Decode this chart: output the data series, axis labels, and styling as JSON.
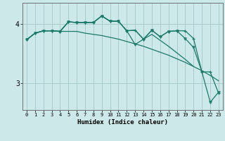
{
  "title": "",
  "xlabel": "Humidex (Indice chaleur)",
  "background_color": "#cce8e8",
  "grid_color": "#aacccc",
  "line_color": "#1a7a6a",
  "ylim": [
    2.55,
    4.35
  ],
  "xlim": [
    -0.5,
    23.5
  ],
  "yticks": [
    3,
    4
  ],
  "line1_x": [
    0,
    1,
    2,
    3,
    4,
    5,
    6,
    7,
    8,
    9,
    10,
    11,
    12,
    13,
    14,
    15,
    16,
    17,
    18,
    19,
    20,
    21,
    22,
    23
  ],
  "line1_y": [
    3.73,
    3.84,
    3.88,
    3.88,
    3.87,
    4.03,
    4.02,
    4.02,
    4.02,
    4.13,
    4.04,
    4.04,
    3.88,
    3.89,
    3.74,
    3.89,
    3.78,
    3.87,
    3.88,
    3.88,
    3.75,
    3.19,
    3.19,
    2.83
  ],
  "line2_x": [
    0,
    1,
    2,
    3,
    4,
    5,
    6,
    7,
    8,
    9,
    10,
    11,
    12,
    13,
    14,
    15,
    16,
    17,
    18,
    19,
    20,
    21,
    22,
    23
  ],
  "line2_y": [
    3.73,
    3.84,
    3.88,
    3.88,
    3.87,
    4.03,
    4.02,
    4.02,
    4.02,
    4.13,
    4.04,
    4.04,
    3.88,
    3.65,
    3.74,
    3.89,
    3.78,
    3.87,
    3.88,
    3.75,
    3.6,
    3.19,
    2.68,
    2.85
  ],
  "line3_x": [
    0,
    1,
    2,
    3,
    4,
    5,
    6,
    7,
    8,
    9,
    10,
    11,
    12,
    13,
    14,
    15,
    16,
    17,
    18,
    19,
    20
  ],
  "line3_y": [
    3.73,
    3.84,
    3.88,
    3.88,
    3.87,
    4.03,
    4.02,
    4.02,
    4.02,
    4.13,
    4.04,
    4.04,
    3.88,
    3.89,
    3.74,
    3.82,
    3.72,
    3.62,
    3.51,
    3.4,
    3.28
  ],
  "line4_x": [
    0,
    1,
    2,
    3,
    4,
    5,
    6,
    7,
    8,
    9,
    10,
    11,
    12,
    13,
    14,
    15,
    16,
    17,
    18,
    19,
    20,
    21,
    22,
    23
  ],
  "line4_y": [
    3.73,
    3.84,
    3.88,
    3.88,
    3.87,
    3.87,
    3.87,
    3.84,
    3.82,
    3.8,
    3.77,
    3.74,
    3.7,
    3.66,
    3.62,
    3.57,
    3.52,
    3.47,
    3.41,
    3.35,
    3.28,
    3.21,
    3.13,
    3.04
  ]
}
